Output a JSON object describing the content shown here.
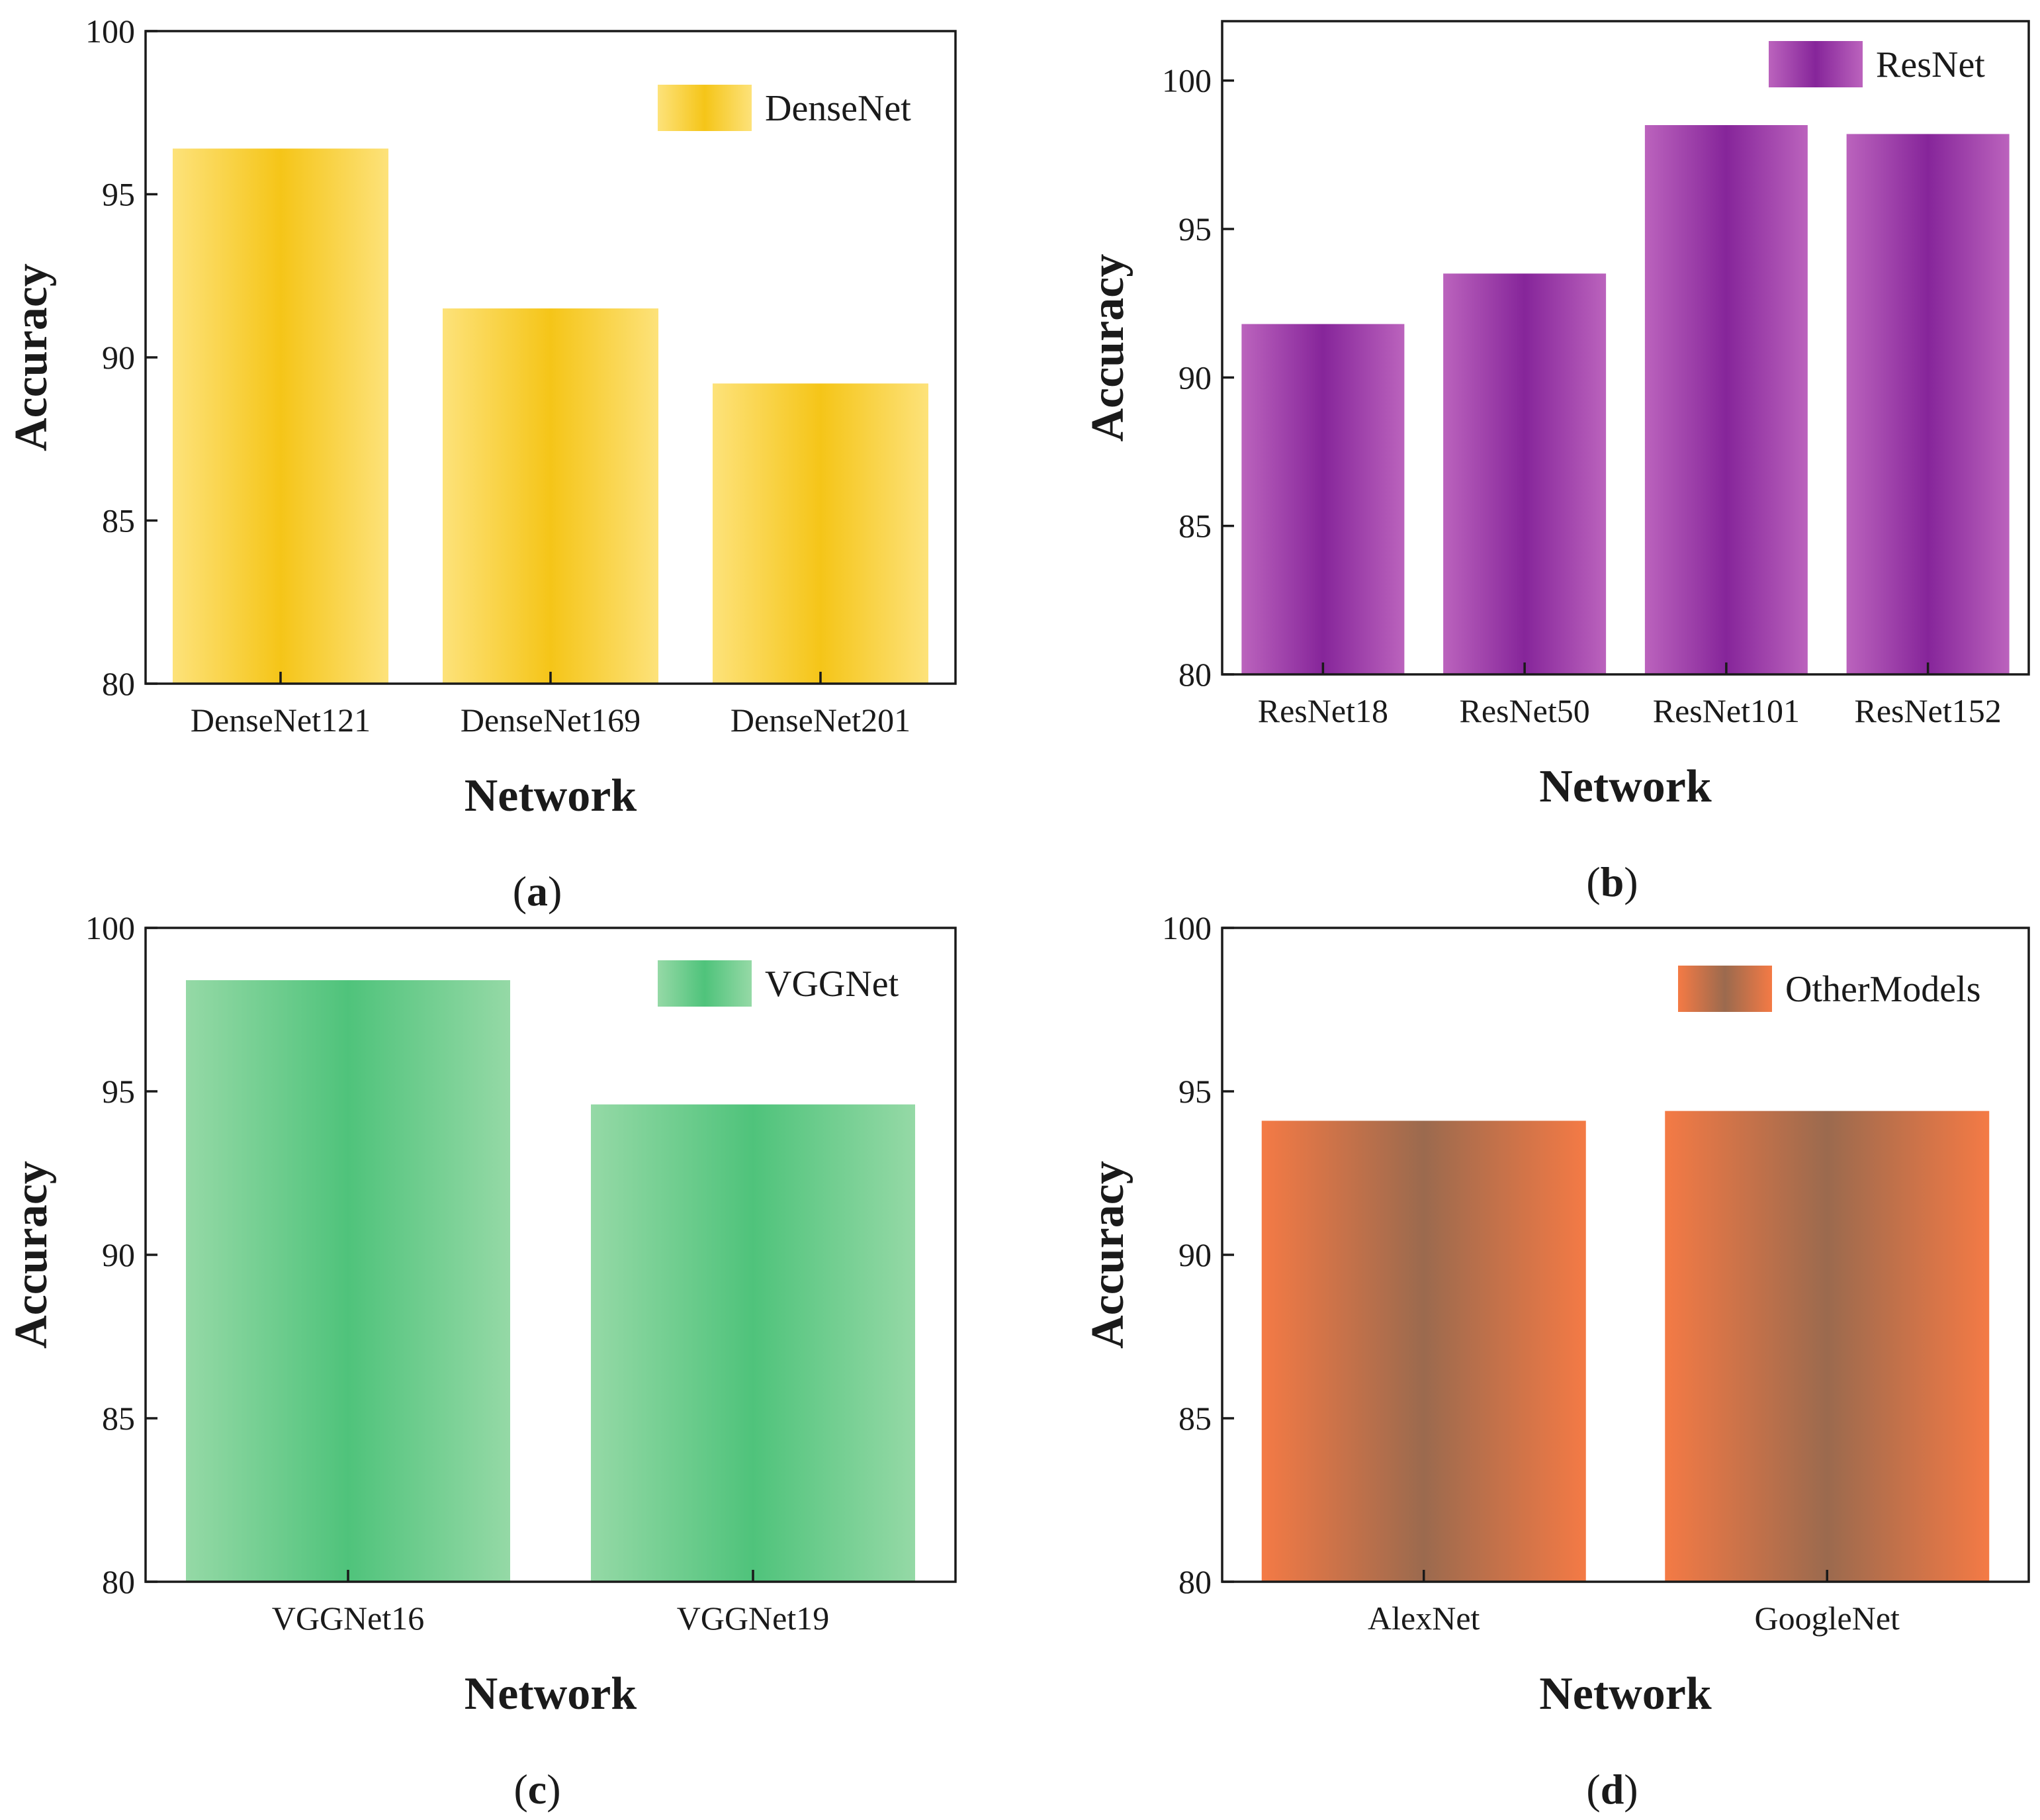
{
  "chart_data": [
    {
      "panel": "(a)",
      "type": "bar",
      "categories": [
        "DenseNet121",
        "DenseNet169",
        "DenseNet201"
      ],
      "series": [
        {
          "name": "DenseNet",
          "values": [
            96.4,
            91.5,
            89.2
          ]
        }
      ],
      "xlabel": "Network",
      "ylabel": "Accuracy",
      "ylim": [
        80,
        100
      ],
      "yticks": [
        80,
        85,
        90,
        95,
        100
      ],
      "legend_position": "top-right",
      "grid": false,
      "colors": {
        "center": "#f5c518",
        "edge": "#fde27a"
      }
    },
    {
      "panel": "(b)",
      "type": "bar",
      "categories": [
        "ResNet18",
        "ResNet50",
        "ResNet101",
        "ResNet152"
      ],
      "series": [
        {
          "name": "ResNet",
          "values": [
            91.8,
            93.5,
            98.5,
            98.2
          ]
        }
      ],
      "xlabel": "Network",
      "ylabel": "Accuracy",
      "ylim": [
        80,
        102
      ],
      "yticks": [
        80,
        85,
        90,
        95,
        100
      ],
      "legend_position": "top-right",
      "grid": false,
      "colors": {
        "center": "#86259a",
        "edge": "#bb63bd"
      }
    },
    {
      "panel": "(c)",
      "type": "bar",
      "categories": [
        "VGGNet16",
        "VGGNet19"
      ],
      "series": [
        {
          "name": "VGGNet",
          "values": [
            98.4,
            94.6
          ]
        }
      ],
      "xlabel": "Network",
      "ylabel": "Accuracy",
      "ylim": [
        80,
        100
      ],
      "yticks": [
        80,
        85,
        90,
        95,
        100
      ],
      "legend_position": "top-right",
      "grid": false,
      "colors": {
        "center": "#4fc37b",
        "edge": "#95d9a6"
      }
    },
    {
      "panel": "(d)",
      "type": "bar",
      "categories": [
        "AlexNet",
        "GoogleNet"
      ],
      "series": [
        {
          "name": "OtherModels",
          "values": [
            94.1,
            94.4
          ]
        }
      ],
      "xlabel": "Network",
      "ylabel": "Accuracy",
      "ylim": [
        80,
        100
      ],
      "yticks": [
        80,
        85,
        90,
        95,
        100
      ],
      "legend_position": "top-right",
      "grid": false,
      "colors": {
        "center": "#9b6a4e",
        "edge": "#f47a45"
      }
    }
  ]
}
